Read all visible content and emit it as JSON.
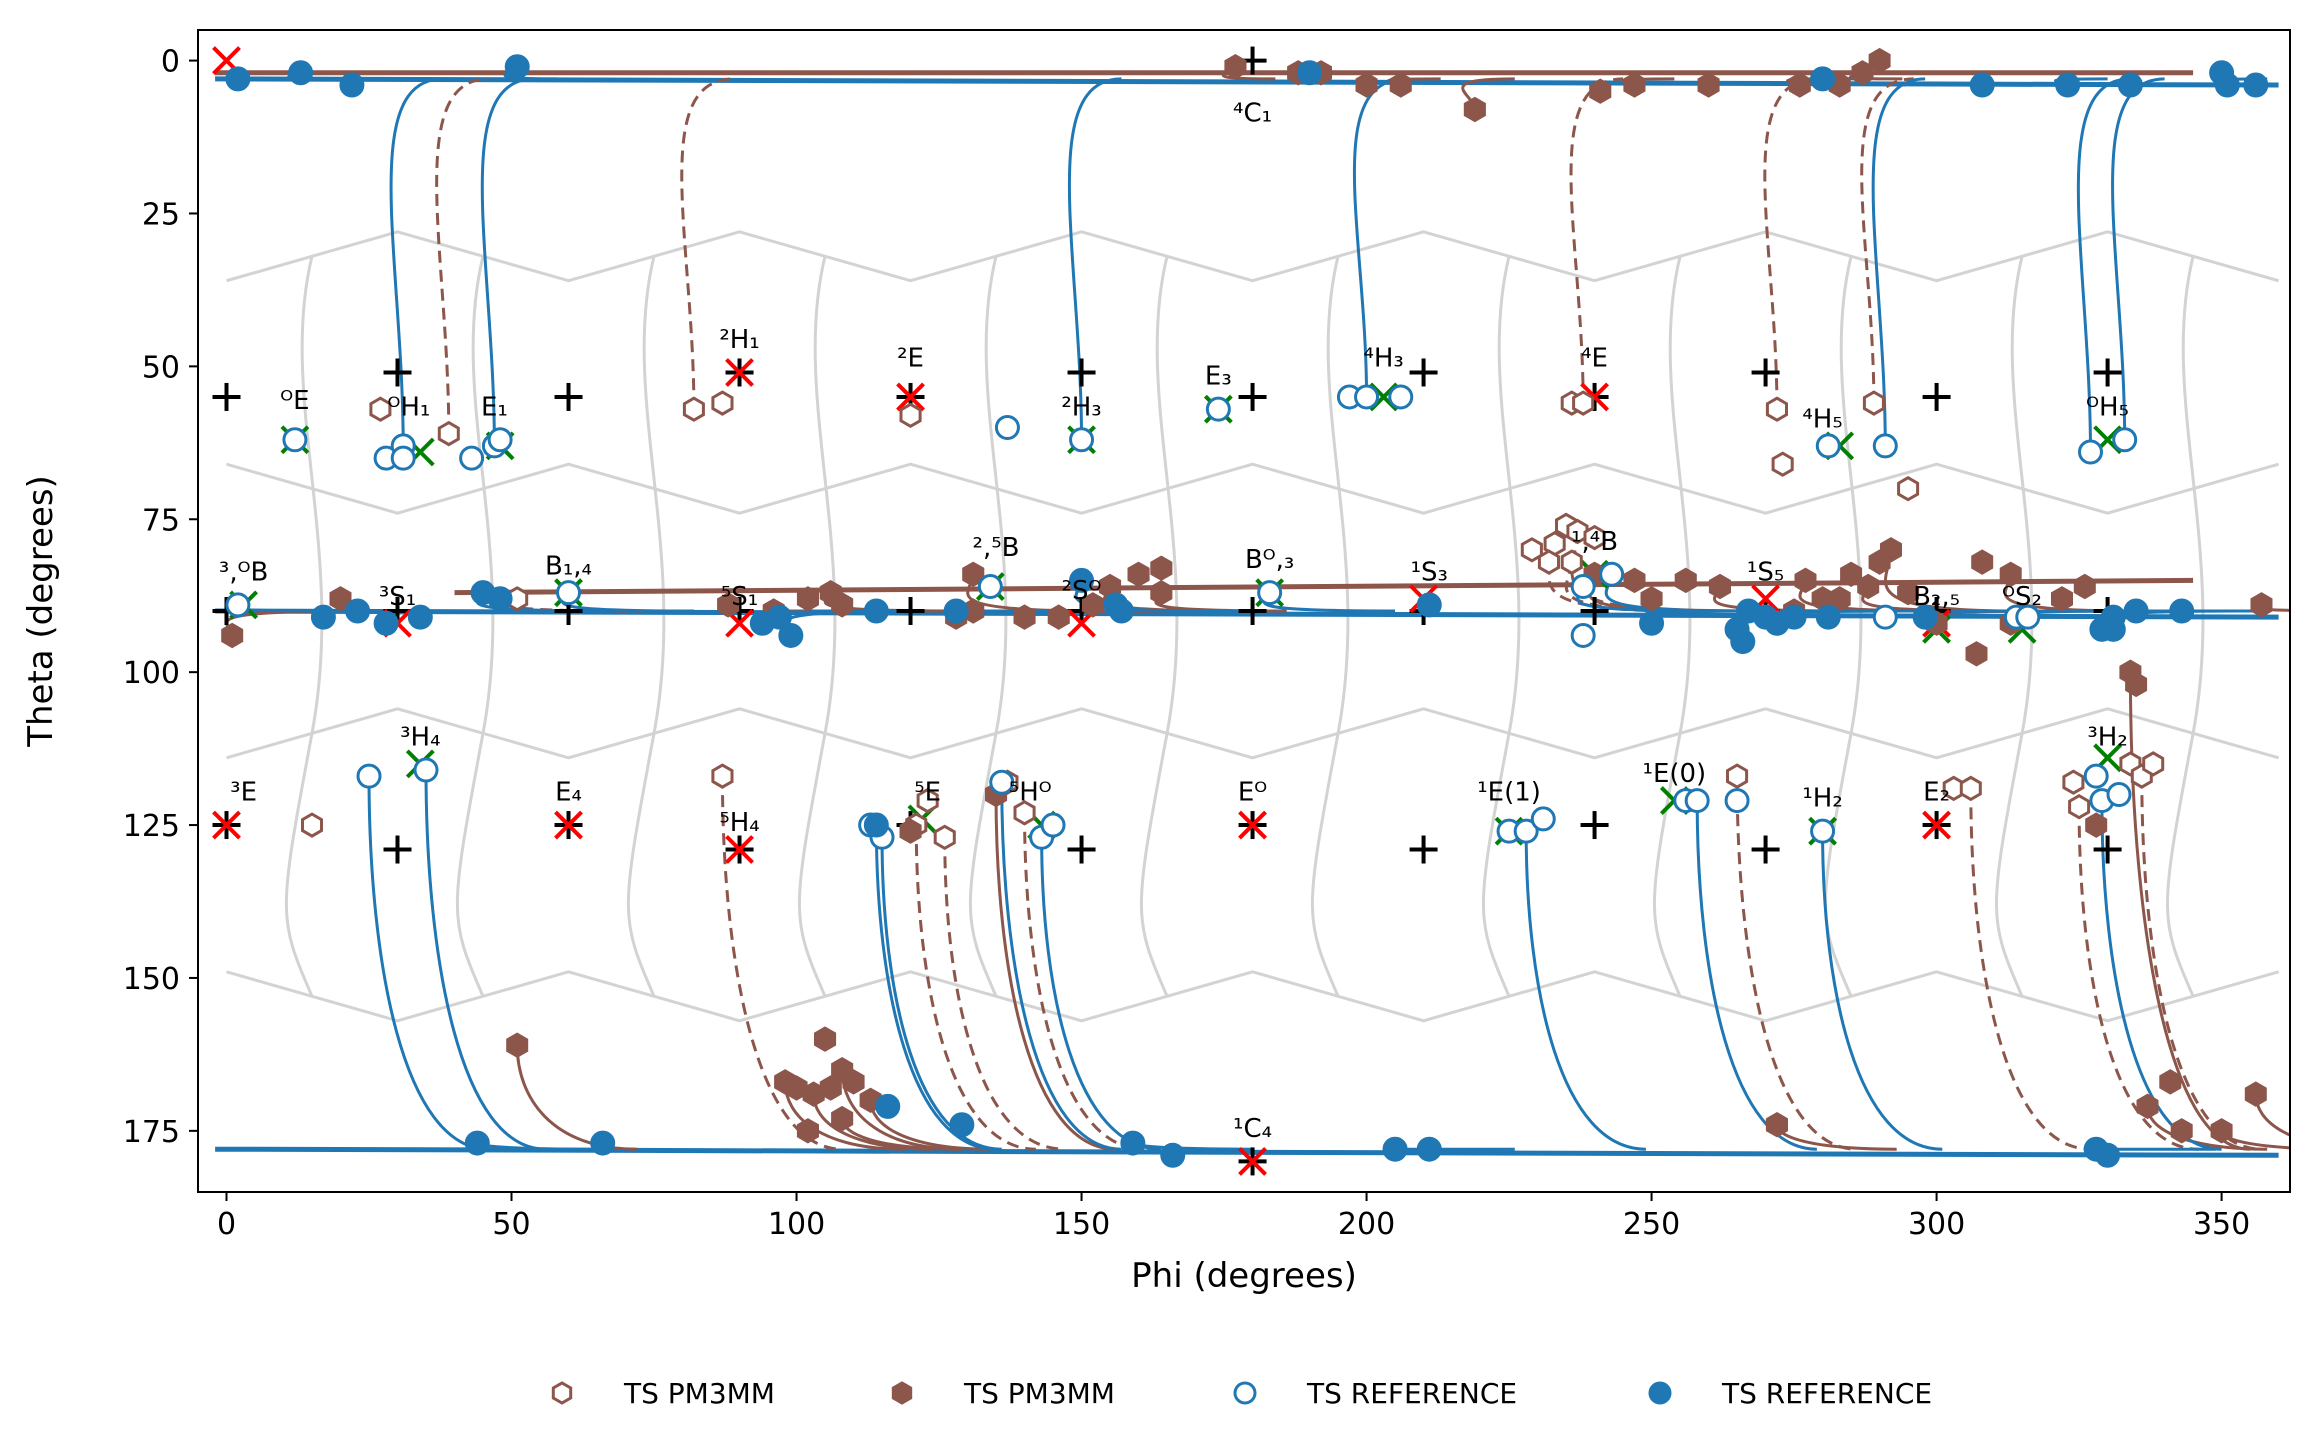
{
  "chart_data": {
    "type": "scatter",
    "xlabel": "Phi (degrees)",
    "ylabel": "Theta (degrees)",
    "xlim": [
      -5,
      362
    ],
    "ylim": [
      185,
      -5
    ],
    "y_inverted": true,
    "xticks": [
      0,
      50,
      100,
      150,
      200,
      250,
      300,
      350
    ],
    "yticks": [
      0,
      25,
      50,
      75,
      100,
      125,
      150,
      175
    ],
    "grid": false,
    "legend_position": "bottom-center",
    "legend_columns": 4,
    "colors": {
      "pm3mm": "#8c564b",
      "reference": "#1f77b4",
      "background_mesh": "#d3d3d3",
      "marker_x_red": "#ff0000",
      "marker_x_green": "#008000",
      "marker_plus": "#000000"
    },
    "legend": [
      {
        "label": "TS PM3MM",
        "marker": "hexagon-open",
        "color": "#8c564b"
      },
      {
        "label": "TS PM3MM",
        "marker": "hexagon-filled",
        "color": "#8c564b"
      },
      {
        "label": "TS REFERENCE",
        "marker": "circle-open",
        "color": "#1f77b4"
      },
      {
        "label": "TS REFERENCE",
        "marker": "circle-filled",
        "color": "#1f77b4"
      }
    ],
    "conformer_labels": [
      {
        "label": "⁴C₁",
        "phi": 180,
        "theta": 10
      },
      {
        "label": "¹C₄",
        "phi": 180,
        "theta": 176
      },
      {
        "label": "ᴼE",
        "phi": 12,
        "theta": 57
      },
      {
        "label": "ᴼH₁",
        "phi": 32,
        "theta": 58
      },
      {
        "label": "E₁",
        "phi": 47,
        "theta": 58
      },
      {
        "label": "²H₁",
        "phi": 90,
        "theta": 47
      },
      {
        "label": "²E",
        "phi": 120,
        "theta": 50
      },
      {
        "label": "²H₃",
        "phi": 150,
        "theta": 58
      },
      {
        "label": "E₃",
        "phi": 174,
        "theta": 53
      },
      {
        "label": "⁴H₃",
        "phi": 203,
        "theta": 50
      },
      {
        "label": "⁴E",
        "phi": 240,
        "theta": 50
      },
      {
        "label": "⁴H₅",
        "phi": 280,
        "theta": 60
      },
      {
        "label": "ᴼH₅",
        "phi": 330,
        "theta": 58
      },
      {
        "label": "³,ᴼB",
        "phi": 3,
        "theta": 85
      },
      {
        "label": "³S₁",
        "phi": 30,
        "theta": 89
      },
      {
        "label": "B₁,₄",
        "phi": 60,
        "theta": 84
      },
      {
        "label": "⁵S₁",
        "phi": 90,
        "theta": 89
      },
      {
        "label": "²,⁵B",
        "phi": 135,
        "theta": 81
      },
      {
        "label": "²Sᴼ",
        "phi": 150,
        "theta": 88
      },
      {
        "label": "Bᴼ,₃",
        "phi": 183,
        "theta": 83
      },
      {
        "label": "¹S₃",
        "phi": 211,
        "theta": 85
      },
      {
        "label": "¹,⁴B",
        "phi": 240,
        "theta": 80
      },
      {
        "label": "¹S₅",
        "phi": 270,
        "theta": 85
      },
      {
        "label": "B₂,₅",
        "phi": 300,
        "theta": 89
      },
      {
        "label": "ᴼS₂",
        "phi": 315,
        "theta": 89
      },
      {
        "label": "³E",
        "phi": 3,
        "theta": 121
      },
      {
        "label": "³H₄",
        "phi": 34,
        "theta": 112
      },
      {
        "label": "E₄",
        "phi": 60,
        "theta": 121
      },
      {
        "label": "⁵H₄",
        "phi": 90,
        "theta": 126
      },
      {
        "label": "⁵E",
        "phi": 123,
        "theta": 121
      },
      {
        "label": "⁵Hᴼ",
        "phi": 141,
        "theta": 121
      },
      {
        "label": "Eᴼ",
        "phi": 180,
        "theta": 121
      },
      {
        "label": "¹E(1)",
        "phi": 225,
        "theta": 121
      },
      {
        "label": "¹E(0)",
        "phi": 254,
        "theta": 118
      },
      {
        "label": "¹H₂",
        "phi": 280,
        "theta": 122
      },
      {
        "label": "E₂",
        "phi": 300,
        "theta": 121
      },
      {
        "label": "³H₂",
        "phi": 330,
        "theta": 112
      }
    ],
    "reference_conformers_plus": [
      [
        180,
        0
      ],
      [
        30,
        51
      ],
      [
        90,
        51
      ],
      [
        150,
        51
      ],
      [
        210,
        51
      ],
      [
        270,
        51
      ],
      [
        330,
        51
      ],
      [
        0,
        55
      ],
      [
        60,
        55
      ],
      [
        120,
        55
      ],
      [
        180,
        55
      ],
      [
        240,
        55
      ],
      [
        300,
        55
      ],
      [
        0,
        90
      ],
      [
        30,
        90
      ],
      [
        60,
        90
      ],
      [
        90,
        90
      ],
      [
        120,
        90
      ],
      [
        150,
        90
      ],
      [
        180,
        90
      ],
      [
        210,
        90
      ],
      [
        240,
        90
      ],
      [
        270,
        90
      ],
      [
        300,
        90
      ],
      [
        330,
        90
      ],
      [
        0,
        125
      ],
      [
        60,
        125
      ],
      [
        120,
        125
      ],
      [
        180,
        125
      ],
      [
        240,
        125
      ],
      [
        300,
        125
      ],
      [
        30,
        129
      ],
      [
        90,
        129
      ],
      [
        150,
        129
      ],
      [
        210,
        129
      ],
      [
        270,
        129
      ],
      [
        330,
        129
      ],
      [
        180,
        180
      ]
    ],
    "red_x_markers": [
      [
        0,
        0
      ],
      [
        90,
        51
      ],
      [
        120,
        55
      ],
      [
        240,
        55
      ],
      [
        30,
        92
      ],
      [
        90,
        92
      ],
      [
        150,
        92
      ],
      [
        210,
        88
      ],
      [
        270,
        88
      ],
      [
        300,
        92
      ],
      [
        0,
        125
      ],
      [
        60,
        125
      ],
      [
        90,
        129
      ],
      [
        180,
        125
      ],
      [
        300,
        125
      ],
      [
        180,
        180
      ]
    ],
    "green_x_markers": [
      [
        12,
        62
      ],
      [
        34,
        64
      ],
      [
        48,
        63
      ],
      [
        150,
        62
      ],
      [
        174,
        57
      ],
      [
        203,
        55
      ],
      [
        283,
        63
      ],
      [
        330,
        62
      ],
      [
        3,
        89
      ],
      [
        60,
        87
      ],
      [
        134,
        86
      ],
      [
        183,
        87
      ],
      [
        240,
        84
      ],
      [
        300,
        93
      ],
      [
        315,
        93
      ],
      [
        34,
        115
      ],
      [
        122,
        124
      ],
      [
        143,
        125
      ],
      [
        225,
        126
      ],
      [
        254,
        121
      ],
      [
        280,
        126
      ],
      [
        330,
        114
      ]
    ],
    "series": [
      {
        "name": "TS PM3MM",
        "marker": "hexagon-open",
        "points": [
          [
            82,
            57
          ],
          [
            87,
            56
          ],
          [
            87,
            117
          ],
          [
            120,
            58
          ],
          [
            121,
            125
          ],
          [
            123,
            121
          ],
          [
            126,
            127
          ],
          [
            137,
            118
          ],
          [
            140,
            123
          ],
          [
            236,
            56
          ],
          [
            238,
            56
          ],
          [
            229,
            80
          ],
          [
            233,
            79
          ],
          [
            235,
            76
          ],
          [
            237,
            77
          ],
          [
            232,
            82
          ],
          [
            236,
            82
          ],
          [
            240,
            78
          ],
          [
            51,
            88
          ],
          [
            27,
            57
          ],
          [
            39,
            61
          ],
          [
            15,
            125
          ],
          [
            272,
            57
          ],
          [
            273,
            66
          ],
          [
            289,
            56
          ],
          [
            295,
            70
          ],
          [
            265,
            117
          ],
          [
            303,
            119
          ],
          [
            306,
            119
          ],
          [
            324,
            118
          ],
          [
            325,
            122
          ],
          [
            334,
            115
          ],
          [
            336,
            117
          ],
          [
            338,
            115
          ]
        ]
      },
      {
        "name": "TS PM3MM",
        "marker": "hexagon-filled",
        "points": [
          [
            1,
            94
          ],
          [
            20,
            88
          ],
          [
            51,
            161
          ],
          [
            88,
            89
          ],
          [
            96,
            90
          ],
          [
            102,
            88
          ],
          [
            106,
            87
          ],
          [
            108,
            89
          ],
          [
            131,
            84
          ],
          [
            128,
            91
          ],
          [
            131,
            90
          ],
          [
            140,
            91
          ],
          [
            146,
            91
          ],
          [
            152,
            89
          ],
          [
            155,
            86
          ],
          [
            160,
            84
          ],
          [
            164,
            87
          ],
          [
            164,
            83
          ],
          [
            98,
            167
          ],
          [
            100,
            168
          ],
          [
            103,
            169
          ],
          [
            106,
            168
          ],
          [
            108,
            165
          ],
          [
            105,
            160
          ],
          [
            108,
            173
          ],
          [
            110,
            167
          ],
          [
            113,
            170
          ],
          [
            102,
            175
          ],
          [
            135,
            120
          ],
          [
            120,
            126
          ],
          [
            177,
            1
          ],
          [
            200,
            4
          ],
          [
            206,
            4
          ],
          [
            192,
            2
          ],
          [
            219,
            8
          ],
          [
            241,
            5
          ],
          [
            247,
            4
          ],
          [
            260,
            4
          ],
          [
            276,
            4
          ],
          [
            283,
            4
          ],
          [
            287,
            2
          ],
          [
            290,
            0
          ],
          [
            250,
            88
          ],
          [
            256,
            85
          ],
          [
            262,
            86
          ],
          [
            275,
            90
          ],
          [
            277,
            85
          ],
          [
            280,
            88
          ],
          [
            283,
            88
          ],
          [
            285,
            84
          ],
          [
            288,
            86
          ],
          [
            290,
            82
          ],
          [
            292,
            80
          ],
          [
            308,
            82
          ],
          [
            313,
            84
          ],
          [
            326,
            86
          ],
          [
            357,
            89
          ],
          [
            295,
            87
          ],
          [
            300,
            92
          ],
          [
            307,
            97
          ],
          [
            313,
            92
          ],
          [
            322,
            88
          ],
          [
            334,
            100
          ],
          [
            335,
            102
          ],
          [
            337,
            171
          ],
          [
            341,
            167
          ],
          [
            356,
            169
          ],
          [
            343,
            175
          ],
          [
            350,
            175
          ],
          [
            247,
            85
          ],
          [
            240,
            84
          ],
          [
            188,
            2
          ],
          [
            272,
            174
          ],
          [
            328,
            125
          ]
        ]
      },
      {
        "name": "TS REFERENCE",
        "marker": "circle-open",
        "points": [
          [
            2,
            89
          ],
          [
            12,
            62
          ],
          [
            25,
            117
          ],
          [
            28,
            65
          ],
          [
            31,
            63
          ],
          [
            31,
            65
          ],
          [
            35,
            116
          ],
          [
            43,
            65
          ],
          [
            47,
            63
          ],
          [
            48,
            62
          ],
          [
            60,
            87
          ],
          [
            113,
            125
          ],
          [
            115,
            127
          ],
          [
            134,
            86
          ],
          [
            136,
            118
          ],
          [
            137,
            60
          ],
          [
            143,
            127
          ],
          [
            145,
            125
          ],
          [
            150,
            62
          ],
          [
            174,
            57
          ],
          [
            183,
            87
          ],
          [
            197,
            55
          ],
          [
            200,
            55
          ],
          [
            206,
            55
          ],
          [
            238,
            86
          ],
          [
            238,
            94
          ],
          [
            243,
            84
          ],
          [
            256,
            121
          ],
          [
            258,
            121
          ],
          [
            265,
            121
          ],
          [
            280,
            126
          ],
          [
            281,
            63
          ],
          [
            291,
            63
          ],
          [
            291,
            91
          ],
          [
            314,
            91
          ],
          [
            316,
            91
          ],
          [
            327,
            64
          ],
          [
            328,
            117
          ],
          [
            329,
            121
          ],
          [
            332,
            120
          ],
          [
            333,
            62
          ],
          [
            225,
            126
          ],
          [
            228,
            126
          ],
          [
            231,
            124
          ]
        ]
      },
      {
        "name": "TS REFERENCE",
        "marker": "circle-filled",
        "points": [
          [
            13,
            2
          ],
          [
            22,
            4
          ],
          [
            51,
            1
          ],
          [
            350,
            2
          ],
          [
            351,
            4
          ],
          [
            308,
            4
          ],
          [
            323,
            4
          ],
          [
            334,
            4
          ],
          [
            17,
            91
          ],
          [
            23,
            90
          ],
          [
            28,
            92
          ],
          [
            34,
            91
          ],
          [
            45,
            87
          ],
          [
            48,
            88
          ],
          [
            94,
            92
          ],
          [
            97,
            91
          ],
          [
            99,
            94
          ],
          [
            114,
            90
          ],
          [
            114,
            125
          ],
          [
            116,
            171
          ],
          [
            128,
            90
          ],
          [
            129,
            174
          ],
          [
            156,
            89
          ],
          [
            157,
            90
          ],
          [
            150,
            85
          ],
          [
            211,
            89
          ],
          [
            250,
            92
          ],
          [
            265,
            93
          ],
          [
            266,
            95
          ],
          [
            267,
            90
          ],
          [
            270,
            91
          ],
          [
            272,
            92
          ],
          [
            275,
            91
          ],
          [
            281,
            91
          ],
          [
            298,
            91
          ],
          [
            329,
            93
          ],
          [
            331,
            93
          ],
          [
            331,
            91
          ],
          [
            335,
            90
          ],
          [
            343,
            90
          ],
          [
            44,
            177
          ],
          [
            66,
            177
          ],
          [
            159,
            177
          ],
          [
            166,
            179
          ],
          [
            205,
            178
          ],
          [
            211,
            178
          ],
          [
            328,
            178
          ],
          [
            330,
            179
          ],
          [
            2,
            3
          ],
          [
            190,
            2
          ],
          [
            280,
            3
          ],
          [
            356,
            4
          ]
        ]
      }
    ]
  }
}
